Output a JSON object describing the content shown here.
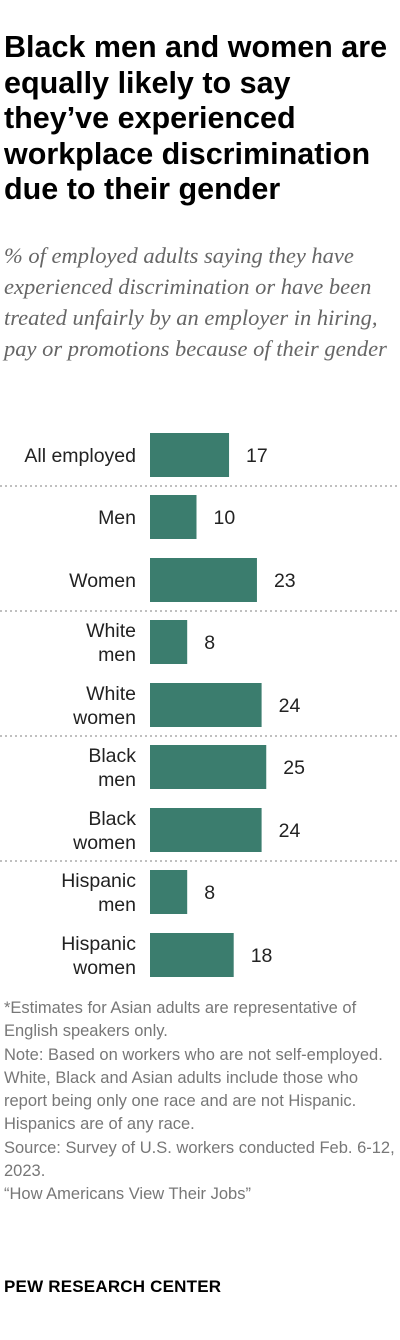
{
  "title": "Black men and women are equally likely to say they’ve experienced workplace discrimination due to their gender",
  "subtitle": "% of employed adults saying they have experienced discrimination or have been treated unfairly by an employer in hiring, pay or promotions because of their gender",
  "chart_data": {
    "type": "bar",
    "orientation": "horizontal",
    "categories": [
      [
        "All employed"
      ],
      [
        "Men"
      ],
      [
        "Women"
      ],
      [
        "White",
        "men"
      ],
      [
        "White",
        "women"
      ],
      [
        "Black",
        "men"
      ],
      [
        "Black",
        "women"
      ],
      [
        "Hispanic",
        "men"
      ],
      [
        "Hispanic",
        "women"
      ]
    ],
    "values": [
      17,
      10,
      23,
      8,
      24,
      25,
      24,
      8,
      18
    ],
    "groups": [
      [
        0
      ],
      [
        1,
        2
      ],
      [
        3,
        4
      ],
      [
        5,
        6
      ],
      [
        7,
        8
      ]
    ],
    "bar_color": "#3b7d6e",
    "grid": false,
    "data_labels": true
  },
  "notes": {
    "asterisk": "*Estimates for Asian adults are representative of English speakers only.",
    "note": "Note: Based on workers who are not self-employed. White, Black and Asian adults include those who report being only one race and are not Hispanic. Hispanics are of any race.",
    "source": "Source: Survey of U.S. workers conducted Feb. 6-12, 2023.",
    "report": "“How Americans View Their Jobs”"
  },
  "brand": "PEW RESEARCH CENTER"
}
